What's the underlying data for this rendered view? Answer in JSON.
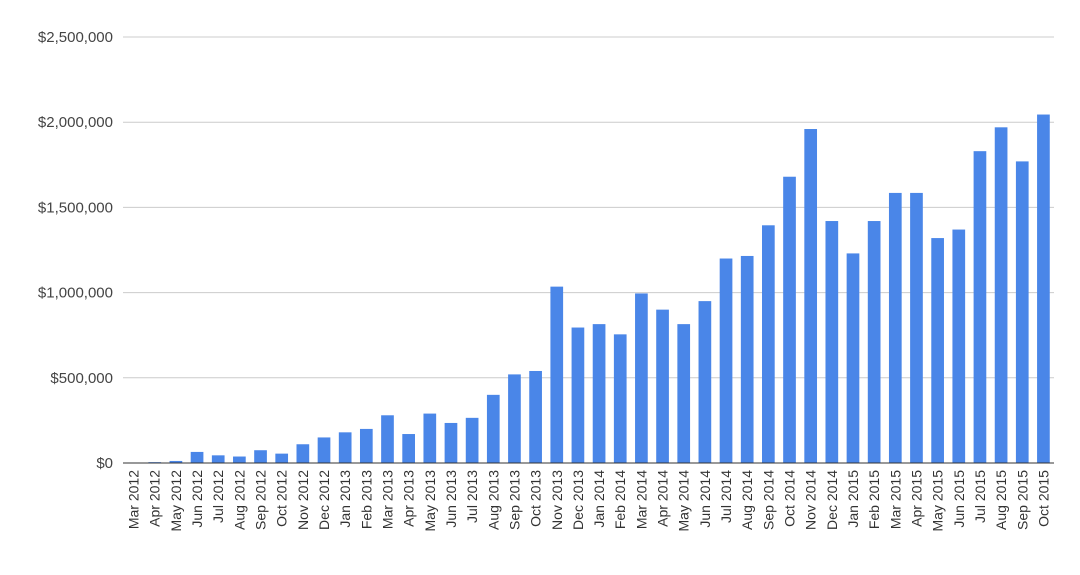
{
  "chart_data": {
    "type": "bar",
    "title": "",
    "xlabel": "",
    "ylabel": "",
    "ylim": [
      0,
      2500000
    ],
    "yticks": [
      0,
      500000,
      1000000,
      1500000,
      2000000,
      2500000
    ],
    "ytick_labels": [
      "$0",
      "$500,000",
      "$1,000,000",
      "$1,500,000",
      "$2,000,000",
      "$2,500,000"
    ],
    "grid": true,
    "bar_color": "#4a86e8",
    "categories": [
      "Mar 2012",
      "Apr 2012",
      "May 2012",
      "Jun 2012",
      "Jul 2012",
      "Aug 2012",
      "Sep 2012",
      "Oct 2012",
      "Nov 2012",
      "Dec 2012",
      "Jan 2013",
      "Feb 2013",
      "Mar 2013",
      "Apr 2013",
      "May 2013",
      "Jun 2013",
      "Jul 2013",
      "Aug 2013",
      "Sep 2013",
      "Oct 2013",
      "Nov 2013",
      "Dec 2013",
      "Jan 2014",
      "Feb 2014",
      "Mar 2014",
      "Apr 2014",
      "May 2014",
      "Jun 2014",
      "Jul 2014",
      "Aug 2014",
      "Sep 2014",
      "Oct 2014",
      "Nov 2014",
      "Dec 2014",
      "Jan 2015",
      "Feb 2015",
      "Mar 2015",
      "Apr 2015",
      "May 2015",
      "Jun 2015",
      "Jul 2015",
      "Aug 2015",
      "Sep 2015",
      "Oct 2015"
    ],
    "values": [
      3000,
      5000,
      12000,
      65000,
      45000,
      38000,
      75000,
      55000,
      110000,
      150000,
      180000,
      200000,
      280000,
      170000,
      290000,
      235000,
      265000,
      400000,
      520000,
      540000,
      1035000,
      795000,
      815000,
      755000,
      995000,
      900000,
      815000,
      950000,
      1200000,
      1215000,
      1395000,
      1680000,
      1960000,
      1420000,
      1230000,
      1420000,
      1585000,
      1585000,
      1320000,
      1370000,
      1830000,
      1970000,
      1770000,
      2045000
    ]
  }
}
